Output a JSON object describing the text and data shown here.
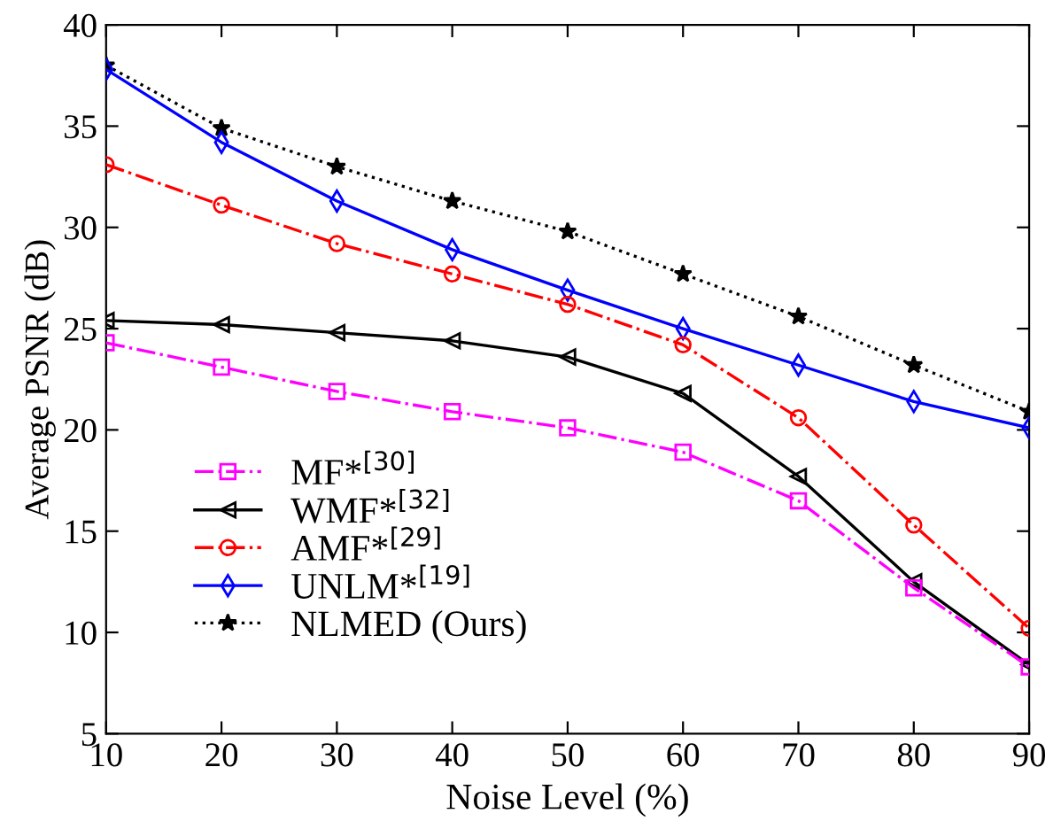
{
  "chart_data": {
    "type": "line",
    "xlabel": "Noise Level (%)",
    "ylabel": "Average PSNR (dB)",
    "x": [
      10,
      20,
      30,
      40,
      50,
      60,
      70,
      80,
      90
    ],
    "xlim": [
      10,
      90
    ],
    "xticks": [
      10,
      20,
      30,
      40,
      50,
      60,
      70,
      80,
      90
    ],
    "ylim": [
      5,
      40
    ],
    "yticks": [
      5,
      10,
      15,
      20,
      25,
      30,
      35,
      40
    ],
    "grid": false,
    "legend": "bottom left",
    "series": [
      {
        "name": "MF*$^{[30]}$",
        "color": "#ff00ff",
        "marker": "square",
        "line_style": "dashdot",
        "values": [
          24.3,
          23.1,
          21.9,
          20.9,
          20.1,
          18.9,
          16.5,
          12.2,
          8.3
        ]
      },
      {
        "name": "WMF*$^{[32]}$",
        "color": "#000000",
        "marker": "triangle",
        "line_style": "solid",
        "values": [
          25.4,
          25.2,
          24.8,
          24.4,
          23.6,
          21.8,
          17.7,
          12.5,
          8.4
        ]
      },
      {
        "name": "AMF*$^{[29]}$",
        "color": "#ff0000",
        "marker": "circle",
        "line_style": "dashdot",
        "values": [
          33.1,
          31.1,
          29.2,
          27.7,
          26.2,
          24.2,
          20.6,
          15.3,
          10.2
        ]
      },
      {
        "name": "UNLM*$^{[19]}$",
        "color": "#0000ff",
        "marker": "diamond",
        "line_style": "solid",
        "values": [
          37.8,
          34.2,
          31.3,
          28.9,
          26.9,
          25.0,
          23.2,
          21.4,
          20.1
        ]
      },
      {
        "name": "NLMED (Ours)",
        "color": "#000000",
        "marker": "star",
        "line_style": "dotted",
        "values": [
          38.0,
          34.9,
          33.0,
          31.3,
          29.8,
          27.7,
          25.6,
          23.2,
          20.9
        ]
      }
    ]
  }
}
